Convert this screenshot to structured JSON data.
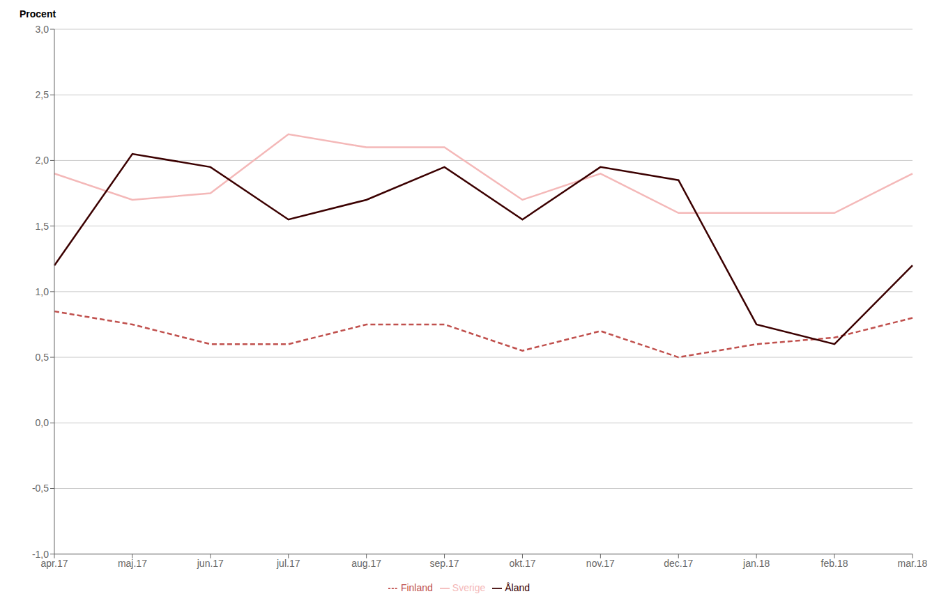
{
  "chart_data": {
    "type": "line",
    "y_label": "Procent",
    "categories": [
      "apr.17",
      "maj.17",
      "jun.17",
      "jul.17",
      "aug.17",
      "sep.17",
      "okt.17",
      "nov.17",
      "dec.17",
      "jan.18",
      "feb.18",
      "mar.18"
    ],
    "series": [
      {
        "name": "Sverige",
        "color": "#f4b8b8",
        "line_style": "solid",
        "values": [
          1.9,
          1.7,
          1.75,
          2.2,
          2.1,
          2.1,
          1.7,
          1.9,
          1.6,
          1.6,
          1.6,
          1.9
        ]
      },
      {
        "name": "Finland",
        "color": "#c0504d",
        "line_style": "dashed",
        "values": [
          0.85,
          0.75,
          0.6,
          0.6,
          0.75,
          0.75,
          0.55,
          0.7,
          0.5,
          0.6,
          0.65,
          0.8
        ]
      },
      {
        "name": "Åland",
        "color": "#3b0000",
        "line_style": "solid",
        "values": [
          1.2,
          2.05,
          1.95,
          1.55,
          1.7,
          1.95,
          1.55,
          1.95,
          1.85,
          0.75,
          0.6,
          1.2
        ]
      }
    ],
    "ylim": [
      -1.0,
      3.0
    ],
    "yticks": [
      {
        "value": -1.0,
        "label": "-1,0"
      },
      {
        "value": -0.5,
        "label": "-0,5"
      },
      {
        "value": 0.0,
        "label": "0,0"
      },
      {
        "value": 0.5,
        "label": "0,5"
      },
      {
        "value": 1.0,
        "label": "1,0"
      },
      {
        "value": 1.5,
        "label": "1,5"
      },
      {
        "value": 2.0,
        "label": "2,0"
      },
      {
        "value": 2.5,
        "label": "2,5"
      },
      {
        "value": 3.0,
        "label": "3,0"
      }
    ],
    "grid": true,
    "legend": "bottom"
  }
}
